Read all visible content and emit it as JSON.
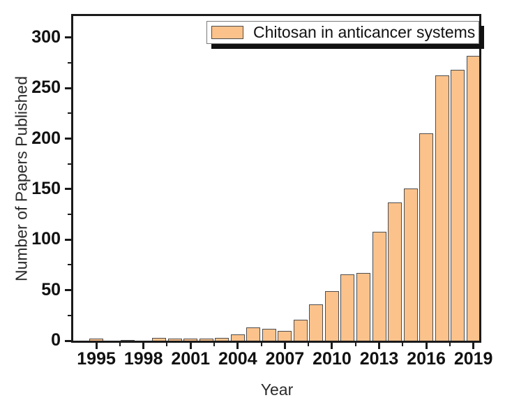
{
  "chart_data": {
    "type": "bar",
    "title": "",
    "xlabel": "Year",
    "ylabel": "Number of Papers Published",
    "x": [
      1995,
      1996,
      1997,
      1998,
      1999,
      2000,
      2001,
      2002,
      2003,
      2004,
      2005,
      2006,
      2007,
      2008,
      2009,
      2010,
      2011,
      2012,
      2013,
      2014,
      2015,
      2016,
      2017,
      2018,
      2019
    ],
    "series": [
      {
        "name": "Chitosan in anticancer systems",
        "values": [
          2,
          0,
          1,
          0,
          3,
          2,
          2,
          2,
          3,
          6,
          13,
          12,
          10,
          21,
          36,
          49,
          66,
          67,
          108,
          137,
          151,
          205,
          263,
          268,
          282
        ]
      }
    ],
    "xlim": [
      1993.53,
      2019.37
    ],
    "ylim": [
      0,
      321.4
    ],
    "yticks": [
      0,
      50,
      100,
      150,
      200,
      250,
      300
    ],
    "yticks_minor": [
      25,
      75,
      125,
      175,
      225,
      275
    ],
    "xticks": [
      1995,
      1998,
      2001,
      2004,
      2007,
      2010,
      2013,
      2016,
      2019
    ],
    "xticks_minor": [
      1996.5,
      1999.5,
      2002.5,
      2005.5,
      2008.5,
      2011.5,
      2014.5,
      2017.5
    ],
    "grid": false,
    "legend_position": "top-right-inside",
    "colors": {
      "bar_fill": "#FBC28C",
      "bar_border": "#4d4d4d",
      "axis": "#1a1a1a",
      "background": "#ffffff"
    }
  }
}
